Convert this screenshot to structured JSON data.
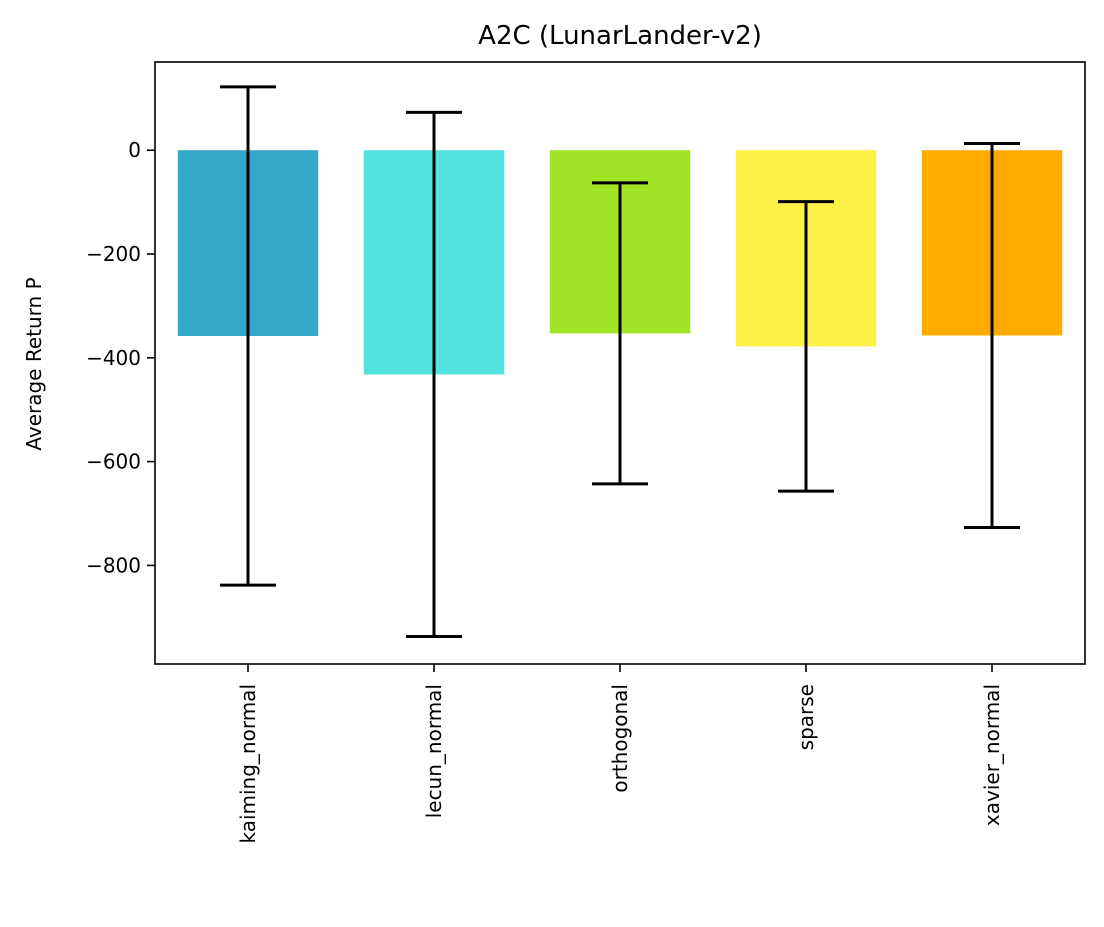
{
  "chart_data": {
    "type": "bar",
    "title": "A2C (LunarLander-v2)",
    "xlabel": "",
    "ylabel": "Average Return P",
    "categories": [
      "kaiming_normal",
      "lecun_normal",
      "orthogonal",
      "sparse",
      "xavier_normal"
    ],
    "values": [
      -358,
      -432,
      -353,
      -378,
      -357
    ],
    "error": [
      480,
      505,
      290,
      279,
      370
    ],
    "colors": [
      "#33a8c7",
      "#52e3e1",
      "#a0e426",
      "#fdf148",
      "#ffab00"
    ],
    "ylim": [
      -990,
      170
    ],
    "yticks": [
      0,
      -200,
      -400,
      -600,
      -800
    ],
    "ytick_labels": [
      "0",
      "−200",
      "−400",
      "−600",
      "−800"
    ],
    "grid": false,
    "legend": "none"
  }
}
